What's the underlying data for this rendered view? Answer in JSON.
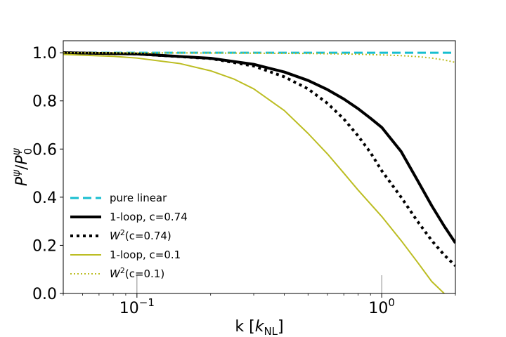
{
  "chart_data": {
    "type": "line",
    "xscale": "log",
    "xlim": [
      0.05,
      2.0
    ],
    "ylim": [
      0.0,
      1.05
    ],
    "xlabel": {
      "prefix": "k [",
      "symbol": "k",
      "subscript": "NL",
      "suffix": "]"
    },
    "ylabel": {
      "base1": "P",
      "sup1": "ψ",
      "slash": "/",
      "base2": "P",
      "sup2": "ψ",
      "sub2": "0"
    },
    "yticks": [
      {
        "value": 0.0,
        "label": "0.0"
      },
      {
        "value": 0.2,
        "label": "0.2"
      },
      {
        "value": 0.4,
        "label": "0.4"
      },
      {
        "value": 0.6,
        "label": "0.6"
      },
      {
        "value": 0.8,
        "label": "0.8"
      },
      {
        "value": 1.0,
        "label": "1.0"
      }
    ],
    "xticks": [
      {
        "value": 0.1,
        "base": "10",
        "exp": "−1"
      },
      {
        "value": 1.0,
        "base": "10",
        "exp": "0"
      }
    ],
    "series": [
      {
        "name": "pure linear",
        "color": "#17becf",
        "style": "dashed",
        "width": 3,
        "x": [
          0.05,
          2.0
        ],
        "y": [
          1.0,
          1.0
        ]
      },
      {
        "name": "1-loop, c=0.74",
        "color": "#000000",
        "style": "solid",
        "width": 4,
        "x": [
          0.05,
          0.1,
          0.2,
          0.3,
          0.4,
          0.5,
          0.6,
          0.7,
          0.8,
          0.9,
          1.0,
          1.2,
          1.4,
          1.6,
          1.8,
          2.0
        ],
        "y": [
          1.0,
          0.995,
          0.977,
          0.952,
          0.92,
          0.885,
          0.847,
          0.808,
          0.768,
          0.728,
          0.69,
          0.59,
          0.47,
          0.365,
          0.28,
          0.21
        ]
      },
      {
        "name": "W²(c=0.74)",
        "legend_main": "W",
        "legend_sup": "2",
        "legend_rest": "(c=0.74)",
        "color": "#000000",
        "style": "dotted",
        "width": 4,
        "x": [
          0.05,
          0.1,
          0.2,
          0.3,
          0.4,
          0.5,
          0.6,
          0.7,
          0.8,
          0.9,
          1.0,
          1.2,
          1.4,
          1.6,
          1.8,
          2.0
        ],
        "y": [
          1.0,
          0.995,
          0.976,
          0.945,
          0.9,
          0.85,
          0.79,
          0.725,
          0.655,
          0.585,
          0.51,
          0.4,
          0.3,
          0.22,
          0.16,
          0.115
        ]
      },
      {
        "name": "1-loop, c=0.1",
        "color": "#bcbd22",
        "style": "solid",
        "width": 2,
        "x": [
          0.05,
          0.08,
          0.1,
          0.15,
          0.2,
          0.25,
          0.3,
          0.4,
          0.5,
          0.6,
          0.7,
          0.8,
          1.0,
          1.2,
          1.4,
          1.6,
          1.8
        ],
        "y": [
          0.993,
          0.985,
          0.978,
          0.955,
          0.925,
          0.89,
          0.85,
          0.76,
          0.665,
          0.58,
          0.5,
          0.43,
          0.32,
          0.22,
          0.13,
          0.05,
          0.0
        ]
      },
      {
        "name": "W²(c=0.1)",
        "legend_main": "W",
        "legend_sup": "2",
        "legend_rest": "(c=0.1)",
        "color": "#bcbd22",
        "style": "dotted",
        "width": 2,
        "x": [
          0.05,
          0.2,
          0.5,
          0.8,
          1.0,
          1.2,
          1.4,
          1.6,
          1.8,
          2.0
        ],
        "y": [
          1.0,
          0.999,
          0.997,
          0.994,
          0.991,
          0.988,
          0.984,
          0.978,
          0.97,
          0.96
        ]
      }
    ],
    "legend_position": "lower-left"
  }
}
